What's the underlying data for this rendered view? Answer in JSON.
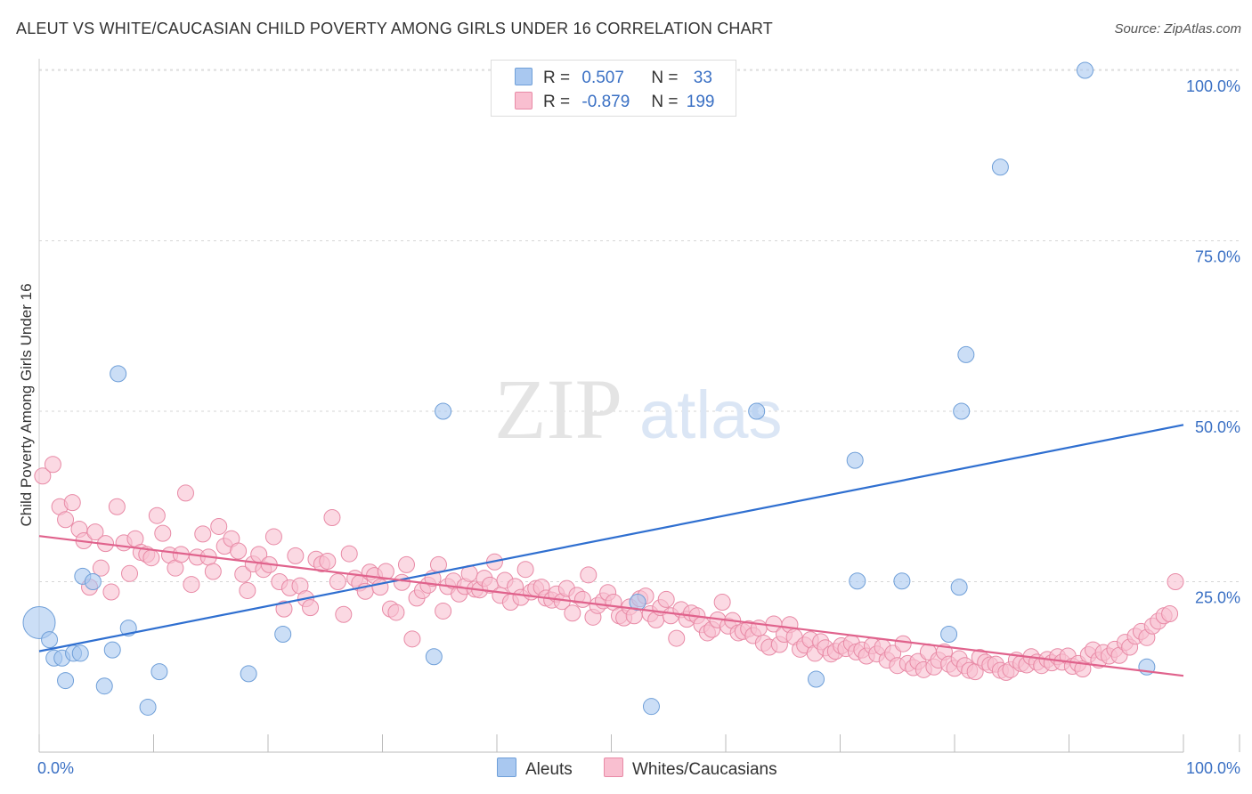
{
  "title": "ALEUT VS WHITE/CAUCASIAN CHILD POVERTY AMONG GIRLS UNDER 16 CORRELATION CHART",
  "source": "Source: ZipAtlas.com",
  "watermark": {
    "zip": "ZIP",
    "atlas": "atlas"
  },
  "legend": {
    "rows": [
      {
        "r_label": "R =",
        "r_value": "0.507",
        "n_label": "N =",
        "n_value": "33",
        "color": "#a9c8f0",
        "border": "#6f9fd8"
      },
      {
        "r_label": "R =",
        "r_value": "-0.879",
        "n_label": "N =",
        "n_value": "199",
        "color": "#f9bfd0",
        "border": "#e88aa6"
      }
    ]
  },
  "bottom_legend": [
    {
      "label": "Aleuts",
      "color": "#a9c8f0",
      "border": "#6f9fd8"
    },
    {
      "label": "Whites/Caucasians",
      "color": "#f9bfd0",
      "border": "#e88aa6"
    }
  ],
  "chart_data": {
    "type": "scatter",
    "title": "ALEUT VS WHITE/CAUCASIAN CHILD POVERTY AMONG GIRLS UNDER 16 CORRELATION CHART",
    "xlabel": "",
    "ylabel": "Child Poverty Among Girls Under 16",
    "xlim": [
      0,
      100
    ],
    "ylim": [
      0,
      100
    ],
    "x_tick_labels": [
      "0.0%",
      "100.0%"
    ],
    "y_tick_labels": [
      "25.0%",
      "50.0%",
      "75.0%",
      "100.0%"
    ],
    "y_ticks": [
      25,
      50,
      75,
      100
    ],
    "grid": "horizontal dashed",
    "legend_position": "top-center",
    "series": [
      {
        "name": "Aleuts",
        "color": "#a9c8f0",
        "stroke": "#6f9fd8",
        "line_color": "#2f6fd0",
        "trend": {
          "x": [
            0,
            100
          ],
          "y": [
            14.8,
            48.0
          ]
        },
        "points": [
          [
            0,
            19
          ],
          [
            0.9,
            16.5
          ],
          [
            1.3,
            13.8
          ],
          [
            2.0,
            13.8
          ],
          [
            2.3,
            10.5
          ],
          [
            3.0,
            14.5
          ],
          [
            3.6,
            14.5
          ],
          [
            3.8,
            25.8
          ],
          [
            4.7,
            25.0
          ],
          [
            5.7,
            9.7
          ],
          [
            6.4,
            15.0
          ],
          [
            6.9,
            55.5
          ],
          [
            7.8,
            18.2
          ],
          [
            9.5,
            6.6
          ],
          [
            10.5,
            11.8
          ],
          [
            18.3,
            11.5
          ],
          [
            21.3,
            17.3
          ],
          [
            34.5,
            14.0
          ],
          [
            35.3,
            50.0
          ],
          [
            52.3,
            22.0
          ],
          [
            53.5,
            6.7
          ],
          [
            62.7,
            50.0
          ],
          [
            67.9,
            10.7
          ],
          [
            71.3,
            42.8
          ],
          [
            71.5,
            25.1
          ],
          [
            75.4,
            25.1
          ],
          [
            79.5,
            17.3
          ],
          [
            80.4,
            24.2
          ],
          [
            80.6,
            50.0
          ],
          [
            81.0,
            58.3
          ],
          [
            84.0,
            85.8
          ],
          [
            91.4,
            100.0
          ],
          [
            96.8,
            12.5
          ]
        ]
      },
      {
        "name": "Whites/Caucasians",
        "color": "#f9bfd0",
        "stroke": "#e88aa6",
        "line_color": "#e0628c",
        "trend": {
          "x": [
            0,
            100
          ],
          "y": [
            31.7,
            11.2
          ]
        },
        "points": [
          [
            0.3,
            40.5
          ],
          [
            1.2,
            42.2
          ],
          [
            1.8,
            36.0
          ],
          [
            2.3,
            34.1
          ],
          [
            2.9,
            36.6
          ],
          [
            3.5,
            32.7
          ],
          [
            3.9,
            31.0
          ],
          [
            4.4,
            24.2
          ],
          [
            4.9,
            32.3
          ],
          [
            5.4,
            27.0
          ],
          [
            5.8,
            30.6
          ],
          [
            6.3,
            23.5
          ],
          [
            6.8,
            36.0
          ],
          [
            7.4,
            30.7
          ],
          [
            7.9,
            26.2
          ],
          [
            8.4,
            31.3
          ],
          [
            8.9,
            29.3
          ],
          [
            9.4,
            29.0
          ],
          [
            9.8,
            28.5
          ],
          [
            10.3,
            34.7
          ],
          [
            10.8,
            32.1
          ],
          [
            11.4,
            28.9
          ],
          [
            11.9,
            27.0
          ],
          [
            12.4,
            29.0
          ],
          [
            12.8,
            38.0
          ],
          [
            13.3,
            24.6
          ],
          [
            13.8,
            28.6
          ],
          [
            14.3,
            32.0
          ],
          [
            14.8,
            28.6
          ],
          [
            15.2,
            26.5
          ],
          [
            15.7,
            33.1
          ],
          [
            16.2,
            30.2
          ],
          [
            16.8,
            31.3
          ],
          [
            17.4,
            29.5
          ],
          [
            17.8,
            26.1
          ],
          [
            18.2,
            23.7
          ],
          [
            18.7,
            27.6
          ],
          [
            19.2,
            29.0
          ],
          [
            19.6,
            26.8
          ],
          [
            20.1,
            27.5
          ],
          [
            20.5,
            31.6
          ],
          [
            21.0,
            25.0
          ],
          [
            21.4,
            21.0
          ],
          [
            21.9,
            24.1
          ],
          [
            22.4,
            28.8
          ],
          [
            22.8,
            24.4
          ],
          [
            23.3,
            22.5
          ],
          [
            23.7,
            21.2
          ],
          [
            24.2,
            28.3
          ],
          [
            24.7,
            27.6
          ],
          [
            25.2,
            28.0
          ],
          [
            25.6,
            34.4
          ],
          [
            26.1,
            25.0
          ],
          [
            26.6,
            20.2
          ],
          [
            27.1,
            29.1
          ],
          [
            27.6,
            25.5
          ],
          [
            28.0,
            24.8
          ],
          [
            28.5,
            23.6
          ],
          [
            28.9,
            26.4
          ],
          [
            29.3,
            25.9
          ],
          [
            29.8,
            24.2
          ],
          [
            30.3,
            26.5
          ],
          [
            30.7,
            21.0
          ],
          [
            31.2,
            20.5
          ],
          [
            31.7,
            24.9
          ],
          [
            32.1,
            27.5
          ],
          [
            32.6,
            16.6
          ],
          [
            33.0,
            22.6
          ],
          [
            33.5,
            23.7
          ],
          [
            34.0,
            24.5
          ],
          [
            34.4,
            25.5
          ],
          [
            34.9,
            27.5
          ],
          [
            35.3,
            20.7
          ],
          [
            35.7,
            24.3
          ],
          [
            36.2,
            25.1
          ],
          [
            36.7,
            23.2
          ],
          [
            37.2,
            24.3
          ],
          [
            37.6,
            26.2
          ],
          [
            38.1,
            23.9
          ],
          [
            38.5,
            23.8
          ],
          [
            38.9,
            25.5
          ],
          [
            39.4,
            24.5
          ],
          [
            39.8,
            27.9
          ],
          [
            40.3,
            23.0
          ],
          [
            40.7,
            25.2
          ],
          [
            41.2,
            22.0
          ],
          [
            41.6,
            24.3
          ],
          [
            42.1,
            22.7
          ],
          [
            42.5,
            26.8
          ],
          [
            43.0,
            23.5
          ],
          [
            43.4,
            24.0
          ],
          [
            43.9,
            24.2
          ],
          [
            44.3,
            22.6
          ],
          [
            44.8,
            22.3
          ],
          [
            45.2,
            23.2
          ],
          [
            45.7,
            22.1
          ],
          [
            46.1,
            24.0
          ],
          [
            46.6,
            20.4
          ],
          [
            47.0,
            23.0
          ],
          [
            47.5,
            22.4
          ],
          [
            48.0,
            26.0
          ],
          [
            48.4,
            19.8
          ],
          [
            48.8,
            21.5
          ],
          [
            49.3,
            22.2
          ],
          [
            49.7,
            23.4
          ],
          [
            50.2,
            22.0
          ],
          [
            50.7,
            20.0
          ],
          [
            51.1,
            19.7
          ],
          [
            51.6,
            21.3
          ],
          [
            52.0,
            20.0
          ],
          [
            52.5,
            22.5
          ],
          [
            53.0,
            22.9
          ],
          [
            53.4,
            20.3
          ],
          [
            53.9,
            19.4
          ],
          [
            54.3,
            21.2
          ],
          [
            54.8,
            22.4
          ],
          [
            55.2,
            20.0
          ],
          [
            55.7,
            16.7
          ],
          [
            56.1,
            20.9
          ],
          [
            56.6,
            19.5
          ],
          [
            57.0,
            20.4
          ],
          [
            57.5,
            20.0
          ],
          [
            57.9,
            18.7
          ],
          [
            58.4,
            17.5
          ],
          [
            58.8,
            18.0
          ],
          [
            59.3,
            19.4
          ],
          [
            59.7,
            22.0
          ],
          [
            60.2,
            18.5
          ],
          [
            60.6,
            19.3
          ],
          [
            61.1,
            17.5
          ],
          [
            61.5,
            17.7
          ],
          [
            62.0,
            18.1
          ],
          [
            62.4,
            17.1
          ],
          [
            62.9,
            18.2
          ],
          [
            63.3,
            16.0
          ],
          [
            63.8,
            15.4
          ],
          [
            64.2,
            18.8
          ],
          [
            64.7,
            15.8
          ],
          [
            65.1,
            17.3
          ],
          [
            65.6,
            18.7
          ],
          [
            66.0,
            16.9
          ],
          [
            66.5,
            15.1
          ],
          [
            66.9,
            15.7
          ],
          [
            67.4,
            16.5
          ],
          [
            67.8,
            14.5
          ],
          [
            68.3,
            16.2
          ],
          [
            68.7,
            15.3
          ],
          [
            69.2,
            14.4
          ],
          [
            69.6,
            14.8
          ],
          [
            70.1,
            15.6
          ],
          [
            70.5,
            15.2
          ],
          [
            71.0,
            16.0
          ],
          [
            71.4,
            14.7
          ],
          [
            71.9,
            15.0
          ],
          [
            72.3,
            14.1
          ],
          [
            72.8,
            15.6
          ],
          [
            73.2,
            14.4
          ],
          [
            73.7,
            15.4
          ],
          [
            74.1,
            13.5
          ],
          [
            74.6,
            14.5
          ],
          [
            75.0,
            12.7
          ],
          [
            75.5,
            15.9
          ],
          [
            75.9,
            13.0
          ],
          [
            76.4,
            12.4
          ],
          [
            76.8,
            13.3
          ],
          [
            77.3,
            12.1
          ],
          [
            77.7,
            14.7
          ],
          [
            78.2,
            12.5
          ],
          [
            78.6,
            13.5
          ],
          [
            79.1,
            14.7
          ],
          [
            79.5,
            12.9
          ],
          [
            80.0,
            12.3
          ],
          [
            80.4,
            13.7
          ],
          [
            80.9,
            12.7
          ],
          [
            81.3,
            12.0
          ],
          [
            81.8,
            11.8
          ],
          [
            82.2,
            13.9
          ],
          [
            82.7,
            13.2
          ],
          [
            83.1,
            12.8
          ],
          [
            83.6,
            12.9
          ],
          [
            84.0,
            12.0
          ],
          [
            84.5,
            11.7
          ],
          [
            84.9,
            12.1
          ],
          [
            85.4,
            13.5
          ],
          [
            85.8,
            13.0
          ],
          [
            86.3,
            12.8
          ],
          [
            86.7,
            14.0
          ],
          [
            87.2,
            13.2
          ],
          [
            87.6,
            12.7
          ],
          [
            88.1,
            13.6
          ],
          [
            88.5,
            13.1
          ],
          [
            89.0,
            14.0
          ],
          [
            89.4,
            13.2
          ],
          [
            89.9,
            14.1
          ],
          [
            90.3,
            12.6
          ],
          [
            90.8,
            13.0
          ],
          [
            91.2,
            12.2
          ],
          [
            91.7,
            14.3
          ],
          [
            92.1,
            15.0
          ],
          [
            92.6,
            13.5
          ],
          [
            93.0,
            14.6
          ],
          [
            93.5,
            14.1
          ],
          [
            94.0,
            15.1
          ],
          [
            94.4,
            14.2
          ],
          [
            94.9,
            16.1
          ],
          [
            95.3,
            15.4
          ],
          [
            95.8,
            17.0
          ],
          [
            96.3,
            17.7
          ],
          [
            96.8,
            16.8
          ],
          [
            97.3,
            18.5
          ],
          [
            97.8,
            19.2
          ],
          [
            98.3,
            20.0
          ],
          [
            98.8,
            20.3
          ],
          [
            99.3,
            25.0
          ]
        ]
      }
    ]
  }
}
